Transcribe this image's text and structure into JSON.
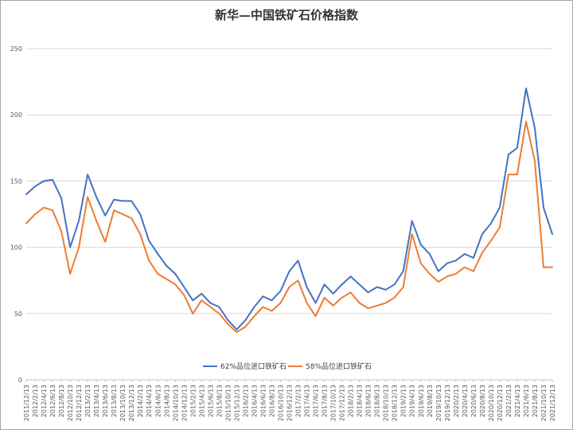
{
  "chart_data": {
    "type": "line",
    "title": "新华—中国铁矿石价格指数",
    "xlabel": "",
    "ylabel": "",
    "ylim": [
      0,
      250
    ],
    "yticks": [
      0,
      50,
      100,
      150,
      200,
      250
    ],
    "grid": true,
    "legend_position": "bottom-center",
    "x": [
      "2011/12/13",
      "2012/2/13",
      "2012/4/13",
      "2012/6/13",
      "2012/8/13",
      "2012/10/13",
      "2012/12/13",
      "2013/2/13",
      "2013/4/13",
      "2013/6/13",
      "2013/8/13",
      "2013/10/13",
      "2013/12/13",
      "2014/2/13",
      "2014/4/13",
      "2014/6/13",
      "2014/8/13",
      "2014/10/13",
      "2014/12/13",
      "2015/2/13",
      "2015/4/13",
      "2015/6/13",
      "2015/8/13",
      "2015/10/13",
      "2015/12/13",
      "2016/2/13",
      "2016/4/13",
      "2016/6/13",
      "2016/8/13",
      "2016/10/13",
      "2016/12/13",
      "2017/2/13",
      "2017/4/13",
      "2017/6/13",
      "2017/8/13",
      "2017/10/13",
      "2017/12/13",
      "2018/2/13",
      "2018/4/13",
      "2018/6/13",
      "2018/8/13",
      "2018/10/13",
      "2018/12/13",
      "2019/2/13",
      "2019/4/13",
      "2019/6/13",
      "2019/8/13",
      "2019/10/13",
      "2019/12/13",
      "2020/2/13",
      "2020/4/13",
      "2020/6/13",
      "2020/8/13",
      "2020/10/13",
      "2020/12/13",
      "2021/2/13",
      "2021/4/13",
      "2021/6/13",
      "2021/8/13",
      "2021/10/13",
      "2021/12/13"
    ],
    "series": [
      {
        "name": "62%品位进口铁矿石",
        "color": "#4472c4",
        "values": [
          140,
          146,
          150,
          151,
          137,
          100,
          120,
          155,
          138,
          124,
          136,
          135,
          135,
          125,
          105,
          95,
          86,
          80,
          70,
          60,
          65,
          58,
          55,
          45,
          38,
          45,
          55,
          63,
          60,
          67,
          82,
          90,
          70,
          58,
          72,
          65,
          72,
          78,
          72,
          66,
          70,
          68,
          72,
          82,
          120,
          102,
          95,
          82,
          88,
          90,
          95,
          92,
          110,
          118,
          130,
          170,
          175,
          220,
          190,
          130,
          110
        ]
      },
      {
        "name": "58%品位进口铁矿石",
        "color": "#ed7d31",
        "values": [
          118,
          125,
          130,
          128,
          112,
          80,
          100,
          138,
          120,
          104,
          128,
          125,
          122,
          110,
          90,
          80,
          76,
          72,
          64,
          50,
          60,
          55,
          50,
          42,
          36,
          40,
          48,
          55,
          52,
          58,
          70,
          75,
          58,
          48,
          62,
          56,
          62,
          66,
          58,
          54,
          56,
          58,
          62,
          70,
          110,
          88,
          80,
          74,
          78,
          80,
          85,
          82,
          96,
          105,
          115,
          155,
          155,
          195,
          165,
          85,
          85
        ]
      }
    ]
  }
}
